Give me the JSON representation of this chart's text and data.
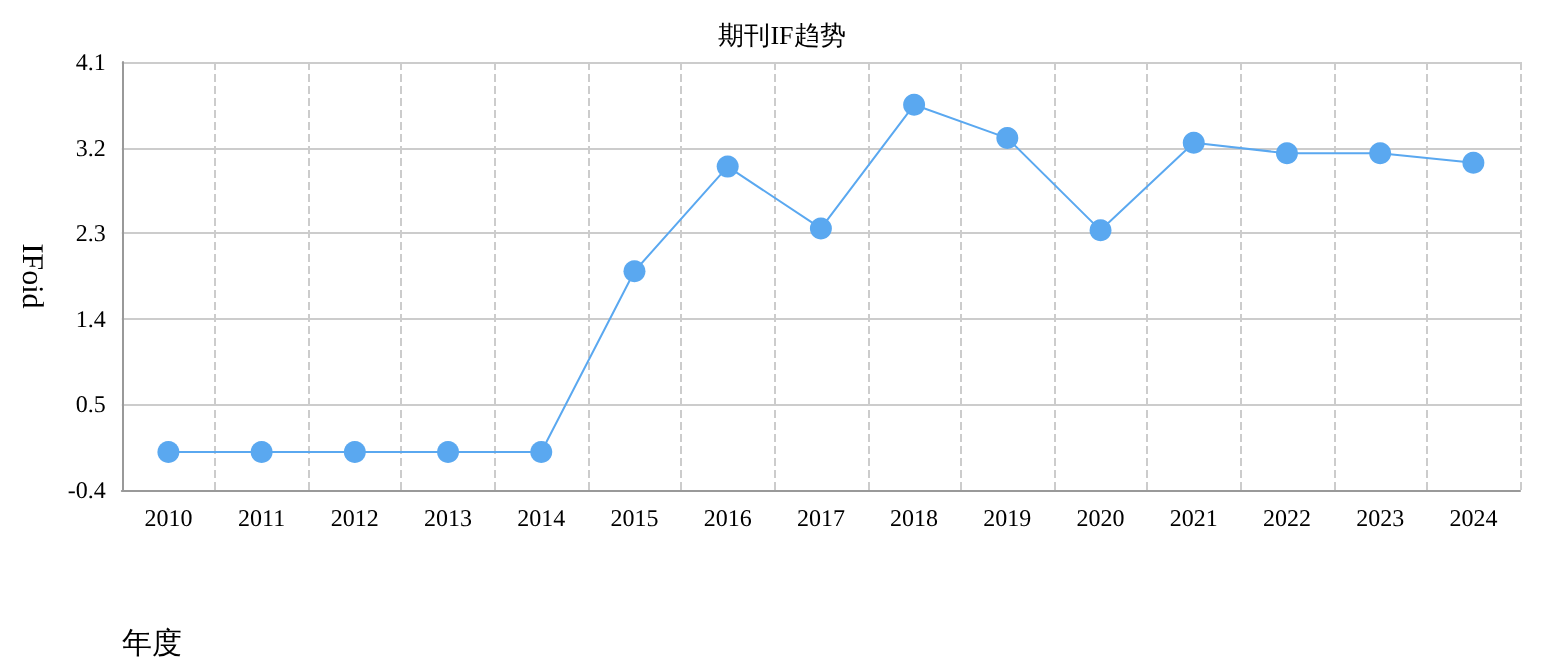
{
  "chart_data": {
    "type": "line",
    "title": "期刊IF趋势",
    "xlabel": "年度",
    "ylabel": "IFoid",
    "categories": [
      "2010",
      "2011",
      "2012",
      "2013",
      "2014",
      "2015",
      "2016",
      "2017",
      "2018",
      "2019",
      "2020",
      "2021",
      "2022",
      "2023",
      "2024"
    ],
    "series": [
      {
        "color": "#5aa8f0",
        "values": [
          0,
          0,
          0,
          0,
          0,
          1.9,
          3.0,
          2.35,
          3.65,
          3.3,
          2.33,
          3.25,
          3.14,
          3.14,
          3.04
        ]
      }
    ],
    "ylim": [
      -0.4,
      4.1
    ],
    "yticks": [
      -0.4,
      0.5,
      1.4,
      2.3,
      3.2,
      4.1
    ],
    "grid": true,
    "marker": "circle",
    "line_style": "solid"
  }
}
